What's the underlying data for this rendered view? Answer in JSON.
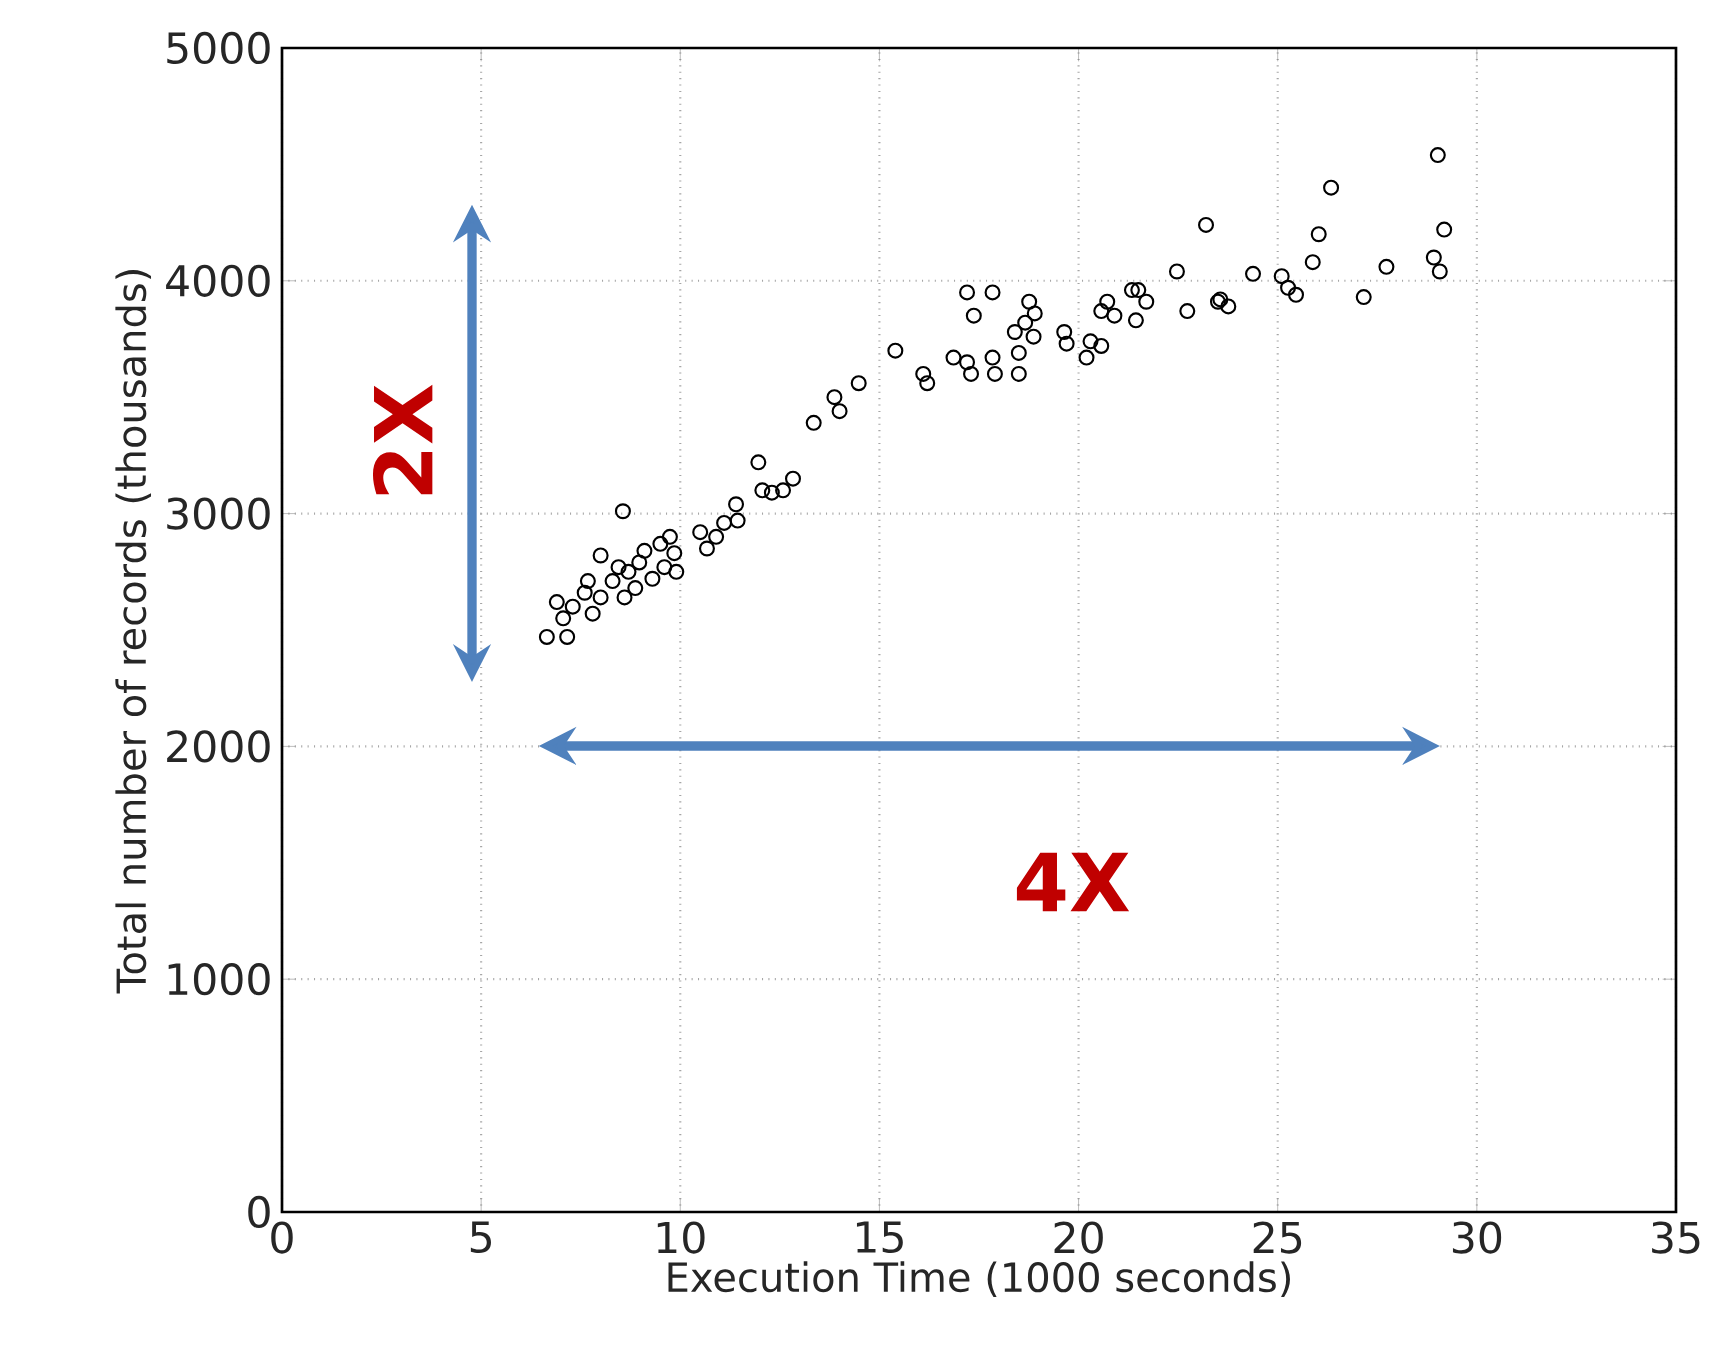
{
  "chart_data": {
    "type": "scatter",
    "xlabel": "Execution Time (1000 seconds)",
    "ylabel": "Total number of records (thousands)",
    "xlim": [
      0,
      35
    ],
    "ylim": [
      0,
      5000
    ],
    "xticks": [
      0,
      5,
      10,
      15,
      20,
      25,
      30,
      35
    ],
    "yticks": [
      0,
      1000,
      2000,
      3000,
      4000,
      5000
    ],
    "grid": true,
    "marker": "circle",
    "color": "#000000",
    "annotations": [
      "2X",
      "4X"
    ],
    "x": [
      6.65,
      7.16,
      7.06,
      6.9,
      7.3,
      7.6,
      7.8,
      8.0,
      8.3,
      8.0,
      8.56,
      8.6,
      8.7,
      8.97,
      9.1,
      9.3,
      9.5,
      9.6,
      9.85,
      9.74,
      9.9,
      8.87,
      8.45,
      7.68,
      10.5,
      10.67,
      10.9,
      11.1,
      11.4,
      11.44,
      11.96,
      12.06,
      12.3,
      12.58,
      12.83,
      13.35,
      13.87,
      14.0,
      14.48,
      15.4,
      16.1,
      16.2,
      16.86,
      17.2,
      17.3,
      17.2,
      17.84,
      17.37,
      17.84,
      17.9,
      18.5,
      18.5,
      18.4,
      18.66,
      18.76,
      18.9,
      18.87,
      19.64,
      19.7,
      20.2,
      20.3,
      20.57,
      20.57,
      20.72,
      20.9,
      21.34,
      21.5,
      21.7,
      21.44,
      22.47,
      22.73,
      23.5,
      23.2,
      23.56,
      23.76,
      24.38,
      25.1,
      25.26,
      25.46,
      25.88,
      26.03,
      26.34,
      27.16,
      27.73,
      28.92,
      29.07,
      29.18,
      29.02
    ],
    "values": [
      2470,
      2470,
      2550,
      2620,
      2600,
      2660,
      2570,
      2640,
      2710,
      2820,
      3010,
      2640,
      2750,
      2790,
      2840,
      2720,
      2870,
      2770,
      2830,
      2900,
      2750,
      2680,
      2770,
      2710,
      2920,
      2850,
      2900,
      2960,
      3040,
      2970,
      3220,
      3100,
      3090,
      3100,
      3150,
      3390,
      3500,
      3440,
      3560,
      3700,
      3600,
      3560,
      3670,
      3650,
      3600,
      3950,
      3950,
      3850,
      3670,
      3600,
      3600,
      3690,
      3780,
      3820,
      3910,
      3860,
      3760,
      3780,
      3730,
      3670,
      3740,
      3720,
      3870,
      3910,
      3850,
      3960,
      3960,
      3910,
      3830,
      4040,
      3870,
      3910,
      4240,
      3920,
      3890,
      4030,
      4020,
      3970,
      3940,
      4080,
      4200,
      4400,
      3930,
      4060,
      4100,
      4040,
      4220,
      4540
    ]
  }
}
